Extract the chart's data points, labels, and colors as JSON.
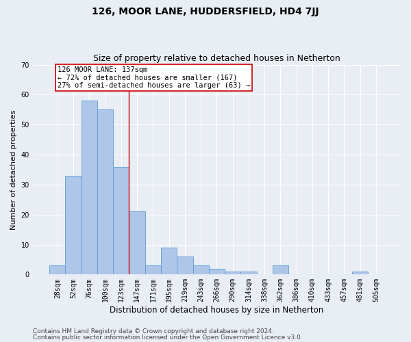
{
  "title": "126, MOOR LANE, HUDDERSFIELD, HD4 7JJ",
  "subtitle": "Size of property relative to detached houses in Netherton",
  "xlabel": "Distribution of detached houses by size in Netherton",
  "ylabel": "Number of detached properties",
  "categories": [
    "28sqm",
    "52sqm",
    "76sqm",
    "100sqm",
    "123sqm",
    "147sqm",
    "171sqm",
    "195sqm",
    "219sqm",
    "243sqm",
    "266sqm",
    "290sqm",
    "314sqm",
    "338sqm",
    "362sqm",
    "386sqm",
    "410sqm",
    "433sqm",
    "457sqm",
    "481sqm",
    "505sqm"
  ],
  "values": [
    3,
    33,
    58,
    55,
    36,
    21,
    3,
    9,
    6,
    3,
    2,
    1,
    1,
    0,
    3,
    0,
    0,
    0,
    0,
    1,
    0
  ],
  "bar_color": "#aec6e8",
  "bar_edge_color": "#5b9bd5",
  "background_color": "#e8eef4",
  "grid_color": "#ffffff",
  "annotation_line1": "126 MOOR LANE: 137sqm",
  "annotation_line2": "← 72% of detached houses are smaller (167)",
  "annotation_line3": "27% of semi-detached houses are larger (63) →",
  "annotation_box_color": "#ffffff",
  "annotation_box_edge_color": "#cc0000",
  "vline_x": 4.5,
  "vline_color": "#cc0000",
  "ylim": [
    0,
    70
  ],
  "yticks": [
    0,
    10,
    20,
    30,
    40,
    50,
    60,
    70
  ],
  "footnote1": "Contains HM Land Registry data © Crown copyright and database right 2024.",
  "footnote2": "Contains public sector information licensed under the Open Government Licence v3.0.",
  "title_fontsize": 10,
  "subtitle_fontsize": 9,
  "xlabel_fontsize": 8.5,
  "ylabel_fontsize": 8,
  "tick_fontsize": 7,
  "annot_fontsize": 7.5,
  "footnote_fontsize": 6.5
}
